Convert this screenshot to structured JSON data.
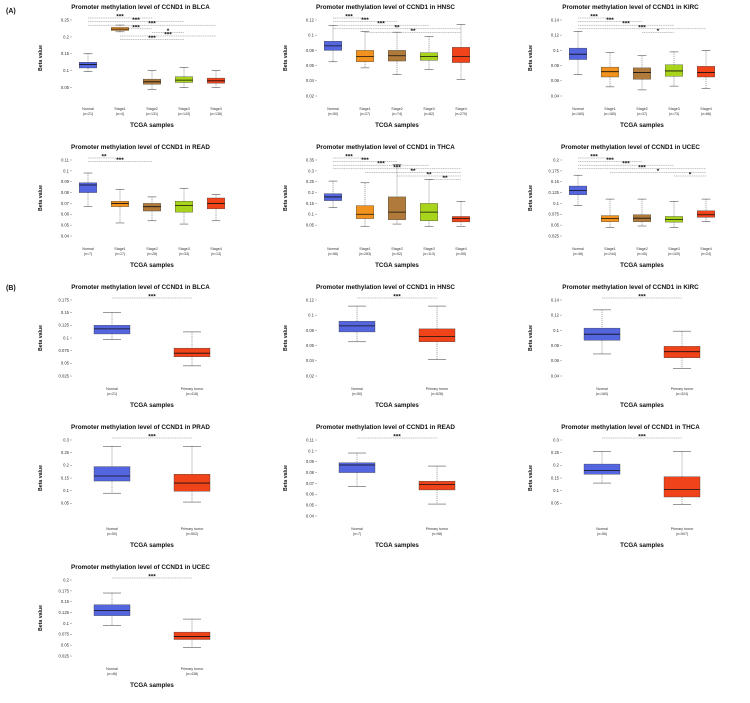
{
  "panels": {
    "a": "(A)",
    "b": "(B)"
  },
  "chart_data": [
    {
      "id": "a1",
      "type": "box",
      "title": "Promoter methylation level of CCND1 in BLCA",
      "xlabel": "TCGA samples",
      "ylabel": "Beta value",
      "ylim": [
        0.025,
        0.25
      ],
      "yticks": [
        "0.05",
        "0.1",
        "0.15",
        "0.2",
        "0.25"
      ],
      "categories": [
        {
          "name": "Normal",
          "n": "(n=21)",
          "color": "#5465e0",
          "min": 0.097,
          "q1": 0.108,
          "median": 0.118,
          "q3": 0.125,
          "max": 0.15
        },
        {
          "name": "Stage1",
          "n": "(n=4)",
          "color": "#f2921e",
          "min": 0.215,
          "q1": 0.219,
          "median": 0.223,
          "q3": 0.228,
          "max": 0.235
        },
        {
          "name": "Stage2",
          "n": "(n=131)",
          "color": "#b07a3a",
          "min": 0.045,
          "q1": 0.06,
          "median": 0.067,
          "q3": 0.075,
          "max": 0.1
        },
        {
          "name": "Stage3",
          "n": "(n=143)",
          "color": "#a9d41c",
          "min": 0.05,
          "q1": 0.065,
          "median": 0.072,
          "q3": 0.082,
          "max": 0.11
        },
        {
          "name": "Stage4",
          "n": "(n=136)",
          "color": "#f0431a",
          "min": 0.05,
          "q1": 0.063,
          "median": 0.07,
          "q3": 0.078,
          "max": 0.1
        }
      ],
      "significance": [
        {
          "from": 0,
          "to": 2,
          "label": "***"
        },
        {
          "from": 0,
          "to": 3,
          "label": "***"
        },
        {
          "from": 0,
          "to": 4,
          "label": "***"
        },
        {
          "from": 1,
          "to": 2,
          "label": "***"
        },
        {
          "from": 2,
          "to": 3,
          "label": "*"
        },
        {
          "from": 1,
          "to": 4,
          "label": "***"
        },
        {
          "from": 1,
          "to": 3,
          "label": "***"
        }
      ]
    },
    {
      "id": "a2",
      "type": "box",
      "title": "Promoter methylation level of CCND1 in HNSC",
      "xlabel": "TCGA samples",
      "ylabel": "Beta value",
      "ylim": [
        0.02,
        0.12
      ],
      "yticks": [
        "0.02",
        "0.04",
        "0.06",
        "0.08",
        "0.1",
        "0.12"
      ],
      "categories": [
        {
          "name": "Normal",
          "n": "(n=50)",
          "color": "#5465e0",
          "min": 0.065,
          "q1": 0.08,
          "median": 0.086,
          "q3": 0.092,
          "max": 0.113
        },
        {
          "name": "Stage1",
          "n": "(n=27)",
          "color": "#f2921e",
          "min": 0.057,
          "q1": 0.065,
          "median": 0.072,
          "q3": 0.08,
          "max": 0.105
        },
        {
          "name": "Stage2",
          "n": "(n=74)",
          "color": "#b07a3a",
          "min": 0.048,
          "q1": 0.066,
          "median": 0.073,
          "q3": 0.08,
          "max": 0.104
        },
        {
          "name": "Stage3",
          "n": "(n=82)",
          "color": "#a9d41c",
          "min": 0.055,
          "q1": 0.067,
          "median": 0.072,
          "q3": 0.077,
          "max": 0.098
        },
        {
          "name": "Stage4",
          "n": "(n=270)",
          "color": "#f0431a",
          "min": 0.042,
          "q1": 0.064,
          "median": 0.072,
          "q3": 0.084,
          "max": 0.114
        }
      ],
      "significance": [
        {
          "from": 0,
          "to": 1,
          "label": "***"
        },
        {
          "from": 0,
          "to": 2,
          "label": "***"
        },
        {
          "from": 0,
          "to": 3,
          "label": "***"
        },
        {
          "from": 0,
          "to": 4,
          "label": "**"
        },
        {
          "from": 1,
          "to": 4,
          "label": "**"
        }
      ]
    },
    {
      "id": "a3",
      "type": "box",
      "title": "Promoter methylation level of CCND1 in KIRC",
      "xlabel": "TCGA samples",
      "ylabel": "Beta value",
      "ylim": [
        0.04,
        0.14
      ],
      "yticks": [
        "0.04",
        "0.06",
        "0.08",
        "0.1",
        "0.12",
        "0.14"
      ],
      "categories": [
        {
          "name": "Normal",
          "n": "(n=160)",
          "color": "#5465e0",
          "min": 0.068,
          "q1": 0.088,
          "median": 0.095,
          "q3": 0.103,
          "max": 0.125
        },
        {
          "name": "Stage1",
          "n": "(n=180)",
          "color": "#f2921e",
          "min": 0.052,
          "q1": 0.065,
          "median": 0.072,
          "q3": 0.078,
          "max": 0.097
        },
        {
          "name": "Stage2",
          "n": "(n=37)",
          "color": "#b07a3a",
          "min": 0.048,
          "q1": 0.062,
          "median": 0.071,
          "q3": 0.077,
          "max": 0.093
        },
        {
          "name": "Stage3",
          "n": "(n=73)",
          "color": "#a9d41c",
          "min": 0.053,
          "q1": 0.066,
          "median": 0.073,
          "q3": 0.081,
          "max": 0.098
        },
        {
          "name": "Stage4",
          "n": "(n=66)",
          "color": "#f0431a",
          "min": 0.05,
          "q1": 0.065,
          "median": 0.071,
          "q3": 0.079,
          "max": 0.1
        }
      ],
      "significance": [
        {
          "from": 0,
          "to": 1,
          "label": "***"
        },
        {
          "from": 0,
          "to": 2,
          "label": "***"
        },
        {
          "from": 0,
          "to": 3,
          "label": "***"
        },
        {
          "from": 0,
          "to": 4,
          "label": "***"
        },
        {
          "from": 2,
          "to": 3,
          "label": "*"
        }
      ]
    },
    {
      "id": "a4",
      "type": "box",
      "title": "Promoter methylation level of CCND1 in READ",
      "xlabel": "TCGA samples",
      "ylabel": "Beta value",
      "ylim": [
        0.04,
        0.11
      ],
      "yticks": [
        "0.04",
        "0.05",
        "0.06",
        "0.07",
        "0.08",
        "0.09",
        "0.1",
        "0.11"
      ],
      "categories": [
        {
          "name": "Normal",
          "n": "(n=7)",
          "color": "#5465e0",
          "min": 0.067,
          "q1": 0.08,
          "median": 0.087,
          "q3": 0.089,
          "max": 0.098
        },
        {
          "name": "Stage1",
          "n": "(n=17)",
          "color": "#f2921e",
          "min": 0.052,
          "q1": 0.067,
          "median": 0.07,
          "q3": 0.072,
          "max": 0.083
        },
        {
          "name": "Stage2",
          "n": "(n=28)",
          "color": "#b07a3a",
          "min": 0.054,
          "q1": 0.063,
          "median": 0.067,
          "q3": 0.07,
          "max": 0.076
        },
        {
          "name": "Stage3",
          "n": "(n=33)",
          "color": "#a9d41c",
          "min": 0.051,
          "q1": 0.062,
          "median": 0.068,
          "q3": 0.072,
          "max": 0.084
        },
        {
          "name": "Stage4",
          "n": "(n=13)",
          "color": "#f0431a",
          "min": 0.054,
          "q1": 0.065,
          "median": 0.07,
          "q3": 0.075,
          "max": 0.078
        }
      ],
      "significance": [
        {
          "from": 0,
          "to": 1,
          "label": "**"
        },
        {
          "from": 0,
          "to": 2,
          "label": "***"
        }
      ]
    },
    {
      "id": "a5",
      "type": "box",
      "title": "Promoter methylation level of CCND1 in THCA",
      "xlabel": "TCGA samples",
      "ylabel": "Beta value",
      "ylim": [
        0,
        0.35
      ],
      "yticks": [
        "0.05",
        "0.1",
        "0.15",
        "0.2",
        "0.25",
        "0.3",
        "0.35"
      ],
      "categories": [
        {
          "name": "Normal",
          "n": "(n=56)",
          "color": "#5465e0",
          "min": 0.13,
          "q1": 0.163,
          "median": 0.18,
          "q3": 0.195,
          "max": 0.253
        },
        {
          "name": "Stage1",
          "n": "(n=283)",
          "color": "#f2921e",
          "min": 0.045,
          "q1": 0.08,
          "median": 0.1,
          "q3": 0.14,
          "max": 0.245
        },
        {
          "name": "Stage2",
          "n": "(n=52)",
          "color": "#b07a3a",
          "min": 0.055,
          "q1": 0.075,
          "median": 0.11,
          "q3": 0.18,
          "max": 0.33
        },
        {
          "name": "Stage3",
          "n": "(n=113)",
          "color": "#a9d41c",
          "min": 0.045,
          "q1": 0.07,
          "median": 0.11,
          "q3": 0.15,
          "max": 0.26
        },
        {
          "name": "Stage4",
          "n": "(n=55)",
          "color": "#f0431a",
          "min": 0.045,
          "q1": 0.065,
          "median": 0.08,
          "q3": 0.09,
          "max": 0.16
        }
      ],
      "significance": [
        {
          "from": 0,
          "to": 1,
          "label": "***"
        },
        {
          "from": 0,
          "to": 2,
          "label": "***"
        },
        {
          "from": 0,
          "to": 3,
          "label": "***"
        },
        {
          "from": 0,
          "to": 4,
          "label": "***"
        },
        {
          "from": 1,
          "to": 4,
          "label": "**"
        },
        {
          "from": 2,
          "to": 4,
          "label": "**"
        },
        {
          "from": 3,
          "to": 4,
          "label": "**"
        }
      ]
    },
    {
      "id": "a6",
      "type": "box",
      "title": "Promoter methylation level of CCND1 in UCEC",
      "xlabel": "TCGA samples",
      "ylabel": "Beta value",
      "ylim": [
        0.025,
        0.2
      ],
      "yticks": [
        "0.025",
        "0.05",
        "0.075",
        "0.1",
        "0.125",
        "0.15",
        "0.175",
        "0.2"
      ],
      "categories": [
        {
          "name": "Normal",
          "n": "(n=46)",
          "color": "#5465e0",
          "min": 0.095,
          "q1": 0.12,
          "median": 0.13,
          "q3": 0.14,
          "max": 0.165
        },
        {
          "name": "Stage1",
          "n": "(n=244)",
          "color": "#f2921e",
          "min": 0.045,
          "q1": 0.058,
          "median": 0.065,
          "q3": 0.072,
          "max": 0.11
        },
        {
          "name": "Stage2",
          "n": "(n=40)",
          "color": "#b07a3a",
          "min": 0.048,
          "q1": 0.058,
          "median": 0.066,
          "q3": 0.074,
          "max": 0.11
        },
        {
          "name": "Stage3",
          "n": "(n=100)",
          "color": "#a9d41c",
          "min": 0.045,
          "q1": 0.057,
          "median": 0.063,
          "q3": 0.07,
          "max": 0.105
        },
        {
          "name": "Stage4",
          "n": "(n=24)",
          "color": "#f0431a",
          "min": 0.058,
          "q1": 0.068,
          "median": 0.074,
          "q3": 0.083,
          "max": 0.11
        }
      ],
      "significance": [
        {
          "from": 0,
          "to": 1,
          "label": "***"
        },
        {
          "from": 0,
          "to": 2,
          "label": "***"
        },
        {
          "from": 0,
          "to": 3,
          "label": "***"
        },
        {
          "from": 0,
          "to": 4,
          "label": "***"
        },
        {
          "from": 1,
          "to": 4,
          "label": "*"
        },
        {
          "from": 3,
          "to": 4,
          "label": "*"
        }
      ]
    },
    {
      "id": "b1",
      "type": "box",
      "title": "Promoter methylation level of CCND1 in BLCA",
      "xlabel": "TCGA samples",
      "ylabel": "Beta value",
      "ylim": [
        0.025,
        0.175
      ],
      "yticks": [
        "0.025",
        "0.05",
        "0.075",
        "0.1",
        "0.125",
        "0.15",
        "0.175"
      ],
      "categories": [
        {
          "name": "Normal",
          "n": "(n=21)",
          "color": "#5465e0",
          "min": 0.097,
          "q1": 0.108,
          "median": 0.118,
          "q3": 0.125,
          "max": 0.15
        },
        {
          "name": "Primary tumor",
          "n": "(n=418)",
          "color": "#f0431a",
          "min": 0.045,
          "q1": 0.063,
          "median": 0.07,
          "q3": 0.08,
          "max": 0.112
        }
      ],
      "significance": [
        {
          "from": 0,
          "to": 1,
          "label": "***"
        }
      ]
    },
    {
      "id": "b2",
      "type": "box",
      "title": "Promoter methylation level of CCND1 in HNSC",
      "xlabel": "TCGA samples",
      "ylabel": "Beta value",
      "ylim": [
        0.02,
        0.12
      ],
      "yticks": [
        "0.02",
        "0.04",
        "0.06",
        "0.08",
        "0.1",
        "0.12"
      ],
      "categories": [
        {
          "name": "Normal",
          "n": "(n=50)",
          "color": "#5465e0",
          "min": 0.065,
          "q1": 0.078,
          "median": 0.086,
          "q3": 0.092,
          "max": 0.112
        },
        {
          "name": "Primary tumor",
          "n": "(n=528)",
          "color": "#f0431a",
          "min": 0.042,
          "q1": 0.065,
          "median": 0.072,
          "q3": 0.082,
          "max": 0.112
        }
      ],
      "significance": [
        {
          "from": 0,
          "to": 1,
          "label": "***"
        }
      ]
    },
    {
      "id": "b3",
      "type": "box",
      "title": "Promoter methylation level of CCND1 in KIRC",
      "xlabel": "TCGA samples",
      "ylabel": "Beta value",
      "ylim": [
        0.04,
        0.14
      ],
      "yticks": [
        "0.04",
        "0.06",
        "0.08",
        "0.1",
        "0.12",
        "0.14"
      ],
      "categories": [
        {
          "name": "Normal",
          "n": "(n=160)",
          "color": "#5465e0",
          "min": 0.069,
          "q1": 0.087,
          "median": 0.095,
          "q3": 0.103,
          "max": 0.127
        },
        {
          "name": "Primary tumor",
          "n": "(n=324)",
          "color": "#f0431a",
          "min": 0.05,
          "q1": 0.064,
          "median": 0.072,
          "q3": 0.079,
          "max": 0.099
        }
      ],
      "significance": [
        {
          "from": 0,
          "to": 1,
          "label": "***"
        }
      ]
    },
    {
      "id": "b4",
      "type": "box",
      "title": "Promoter methylation level of CCND1 in PRAD",
      "xlabel": "TCGA samples",
      "ylabel": "Beta value",
      "ylim": [
        0,
        0.3
      ],
      "yticks": [
        "0.05",
        "0.1",
        "0.15",
        "0.2",
        "0.25",
        "0.3"
      ],
      "categories": [
        {
          "name": "Normal",
          "n": "(n=50)",
          "color": "#5465e0",
          "min": 0.09,
          "q1": 0.138,
          "median": 0.158,
          "q3": 0.195,
          "max": 0.275
        },
        {
          "name": "Primary tumor",
          "n": "(n=502)",
          "color": "#f0431a",
          "min": 0.055,
          "q1": 0.098,
          "median": 0.13,
          "q3": 0.165,
          "max": 0.275
        }
      ],
      "significance": [
        {
          "from": 0,
          "to": 1,
          "label": "***"
        }
      ]
    },
    {
      "id": "b5",
      "type": "box",
      "title": "Promoter methylation level of CCND1 in READ",
      "xlabel": "TCGA samples",
      "ylabel": "Beta value",
      "ylim": [
        0.04,
        0.11
      ],
      "yticks": [
        "0.04",
        "0.05",
        "0.06",
        "0.07",
        "0.08",
        "0.09",
        "0.1",
        "0.11"
      ],
      "categories": [
        {
          "name": "Normal",
          "n": "(n=7)",
          "color": "#5465e0",
          "min": 0.067,
          "q1": 0.08,
          "median": 0.087,
          "q3": 0.089,
          "max": 0.098
        },
        {
          "name": "Primary tumor",
          "n": "(n=98)",
          "color": "#f0431a",
          "min": 0.051,
          "q1": 0.064,
          "median": 0.069,
          "q3": 0.072,
          "max": 0.086
        }
      ],
      "significance": [
        {
          "from": 0,
          "to": 1,
          "label": "***"
        }
      ]
    },
    {
      "id": "b6",
      "type": "box",
      "title": "Promoter methylation level of CCND1 in THCA",
      "xlabel": "TCGA samples",
      "ylabel": "Beta value",
      "ylim": [
        0,
        0.3
      ],
      "yticks": [
        "0.05",
        "0.1",
        "0.15",
        "0.2",
        "0.25",
        "0.3"
      ],
      "categories": [
        {
          "name": "Normal",
          "n": "(n=56)",
          "color": "#5465e0",
          "min": 0.13,
          "q1": 0.165,
          "median": 0.18,
          "q3": 0.205,
          "max": 0.255
        },
        {
          "name": "Primary tumor",
          "n": "(n=507)",
          "color": "#f0431a",
          "min": 0.045,
          "q1": 0.075,
          "median": 0.105,
          "q3": 0.155,
          "max": 0.255
        }
      ],
      "significance": [
        {
          "from": 0,
          "to": 1,
          "label": "***"
        }
      ]
    },
    {
      "id": "b7",
      "type": "box",
      "title": "Promoter methylation level of CCND1 in UCEC",
      "xlabel": "TCGA samples",
      "ylabel": "Beta value",
      "ylim": [
        0.025,
        0.2
      ],
      "yticks": [
        "0.025",
        "0.05",
        "0.075",
        "0.1",
        "0.125",
        "0.15",
        "0.175",
        "0.2"
      ],
      "categories": [
        {
          "name": "Normal",
          "n": "(n=46)",
          "color": "#5465e0",
          "min": 0.095,
          "q1": 0.118,
          "median": 0.13,
          "q3": 0.143,
          "max": 0.17
        },
        {
          "name": "Primary tumor",
          "n": "(n=438)",
          "color": "#f0431a",
          "min": 0.045,
          "q1": 0.063,
          "median": 0.07,
          "q3": 0.08,
          "max": 0.11
        }
      ],
      "significance": [
        {
          "from": 0,
          "to": 1,
          "label": "***"
        }
      ]
    }
  ]
}
